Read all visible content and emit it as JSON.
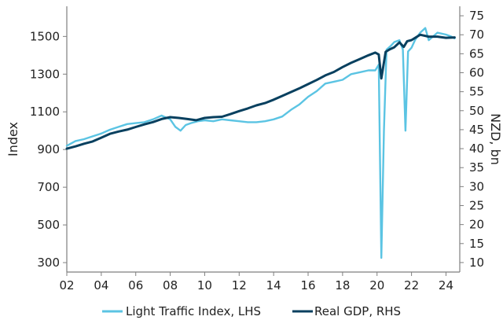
{
  "chart_data": {
    "type": "line",
    "y_left_label": "Index",
    "y_right_label": "NZD, bn",
    "x_ticks": [
      "02",
      "04",
      "06",
      "08",
      "10",
      "12",
      "14",
      "16",
      "18",
      "20",
      "22",
      "24"
    ],
    "x_range": [
      2002,
      2024.8
    ],
    "y_left_ticks": [
      300,
      500,
      700,
      900,
      1100,
      1300,
      1500
    ],
    "y_left_range": [
      250,
      1660
    ],
    "y_right_ticks": [
      10,
      15,
      20,
      25,
      30,
      35,
      40,
      45,
      50,
      55,
      60,
      65,
      70,
      75
    ],
    "y_right_range": [
      7.5,
      77.5
    ],
    "grid": false,
    "legend_position": "bottom",
    "colors": {
      "traffic": "#5bc4e3",
      "gdp": "#08405f"
    },
    "series": [
      {
        "name": "Light Traffic Index, LHS",
        "axis": "left",
        "x": [
          2002.0,
          2002.5,
          2003.0,
          2003.5,
          2004.0,
          2004.5,
          2005.0,
          2005.5,
          2006.0,
          2006.5,
          2007.0,
          2007.5,
          2008.0,
          2008.3,
          2008.6,
          2008.9,
          2009.2,
          2009.6,
          2010.0,
          2010.5,
          2011.0,
          2011.5,
          2012.0,
          2012.5,
          2013.0,
          2013.5,
          2014.0,
          2014.5,
          2015.0,
          2015.5,
          2016.0,
          2016.5,
          2017.0,
          2017.5,
          2018.0,
          2018.5,
          2019.0,
          2019.5,
          2019.9,
          2020.1,
          2020.25,
          2020.4,
          2020.55,
          2020.8,
          2021.0,
          2021.3,
          2021.5,
          2021.65,
          2021.8,
          2022.0,
          2022.2,
          2022.5,
          2022.8,
          2023.0,
          2023.5,
          2024.0,
          2024.3,
          2024.5
        ],
        "values": [
          920,
          945,
          955,
          970,
          985,
          1005,
          1020,
          1035,
          1040,
          1045,
          1060,
          1080,
          1060,
          1020,
          1000,
          1030,
          1040,
          1050,
          1055,
          1050,
          1060,
          1055,
          1050,
          1045,
          1045,
          1050,
          1060,
          1075,
          1110,
          1140,
          1180,
          1210,
          1250,
          1260,
          1270,
          1300,
          1310,
          1320,
          1320,
          1350,
          325,
          1000,
          1430,
          1450,
          1470,
          1480,
          1430,
          1000,
          1420,
          1440,
          1480,
          1520,
          1545,
          1480,
          1520,
          1510,
          1500,
          1490
        ]
      },
      {
        "name": "Real GDP, RHS",
        "axis": "right",
        "x": [
          2002.0,
          2002.5,
          2003.0,
          2003.5,
          2004.0,
          2004.5,
          2005.0,
          2005.5,
          2006.0,
          2006.5,
          2007.0,
          2007.5,
          2008.0,
          2008.5,
          2009.0,
          2009.5,
          2010.0,
          2010.5,
          2011.0,
          2011.5,
          2012.0,
          2012.5,
          2013.0,
          2013.5,
          2014.0,
          2014.5,
          2015.0,
          2015.5,
          2016.0,
          2016.5,
          2017.0,
          2017.5,
          2018.0,
          2018.5,
          2019.0,
          2019.5,
          2019.9,
          2020.1,
          2020.25,
          2020.5,
          2020.75,
          2021.0,
          2021.3,
          2021.55,
          2021.75,
          2022.0,
          2022.5,
          2023.0,
          2023.5,
          2024.0,
          2024.5
        ],
        "values": [
          40.0,
          40.6,
          41.3,
          41.9,
          42.9,
          43.9,
          44.5,
          45.0,
          45.7,
          46.4,
          47.0,
          47.8,
          48.3,
          48.1,
          47.8,
          47.5,
          48.1,
          48.3,
          48.4,
          49.1,
          49.9,
          50.6,
          51.4,
          52.0,
          52.9,
          53.9,
          54.9,
          55.9,
          57.0,
          58.1,
          59.3,
          60.2,
          61.5,
          62.6,
          63.6,
          64.6,
          65.3,
          64.8,
          58.5,
          65.5,
          66.2,
          66.7,
          68.0,
          66.8,
          68.3,
          68.6,
          70.0,
          69.5,
          69.5,
          69.2,
          69.3
        ]
      }
    ]
  }
}
